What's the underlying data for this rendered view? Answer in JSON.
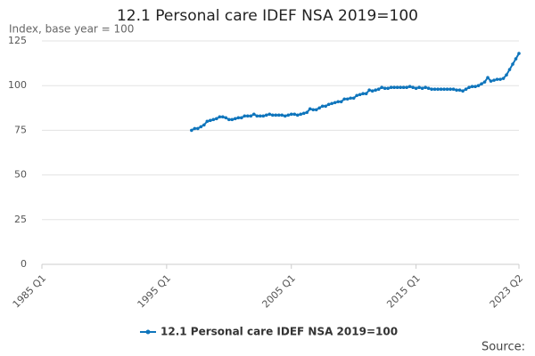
{
  "chart_data": {
    "type": "line",
    "title": "12.1 Personal care IDEF NSA 2019=100",
    "subtitle": "Index, base year = 100",
    "source": "Source:",
    "categories": [
      "1985 Q1",
      null,
      null,
      null,
      null,
      null,
      null,
      null,
      null,
      null,
      null,
      null,
      null,
      null,
      null,
      null,
      null,
      null,
      null,
      null,
      null,
      null,
      null,
      null,
      null,
      null,
      null,
      null,
      null,
      null,
      null,
      null,
      null,
      null,
      null,
      null,
      null,
      null,
      null,
      null,
      "1995 Q1",
      null,
      null,
      null,
      null,
      null,
      null,
      null,
      null,
      null,
      null,
      null,
      null,
      null,
      null,
      null,
      null,
      null,
      null,
      null,
      null,
      null,
      null,
      null,
      null,
      null,
      null,
      null,
      null,
      null,
      null,
      null,
      null,
      null,
      null,
      null,
      null,
      null,
      null,
      null,
      "2005 Q1",
      null,
      null,
      null,
      null,
      null,
      null,
      null,
      null,
      null,
      null,
      null,
      null,
      null,
      null,
      null,
      null,
      null,
      null,
      null,
      null,
      null,
      null,
      null,
      null,
      null,
      null,
      null,
      null,
      null,
      null,
      null,
      null,
      null,
      null,
      null,
      null,
      null,
      null,
      null,
      "2015 Q1",
      null,
      null,
      null,
      null,
      null,
      null,
      null,
      null,
      null,
      null,
      null,
      null,
      null,
      null,
      null,
      null,
      null,
      null,
      null,
      null,
      null,
      null,
      null,
      null,
      null,
      null,
      null,
      null,
      null,
      null,
      null,
      null,
      "2023 Q2"
    ],
    "series": [
      {
        "name": "12.1 Personal care IDEF NSA 2019=100",
        "color": "#0f75bc",
        "values": [
          null,
          null,
          null,
          null,
          null,
          null,
          null,
          null,
          null,
          null,
          null,
          null,
          null,
          null,
          null,
          null,
          null,
          null,
          null,
          null,
          null,
          null,
          null,
          null,
          null,
          null,
          null,
          null,
          null,
          null,
          null,
          null,
          null,
          null,
          null,
          null,
          null,
          null,
          null,
          null,
          null,
          null,
          null,
          null,
          null,
          null,
          null,
          null,
          75,
          76,
          76,
          77,
          78,
          80,
          80.5,
          81,
          81.5,
          82.5,
          82.5,
          82,
          81,
          81,
          81.5,
          82,
          82,
          83,
          83,
          83,
          84,
          83,
          83,
          83,
          83.5,
          84,
          83.5,
          83.5,
          83.5,
          83.5,
          83,
          83.5,
          84,
          84,
          83.5,
          84,
          84.5,
          85,
          87,
          86.5,
          86.5,
          87.5,
          88.5,
          88.5,
          89.5,
          90,
          90.5,
          91,
          91,
          92.5,
          92.5,
          93,
          93,
          94.5,
          95,
          95.5,
          95.5,
          97.5,
          97,
          97.5,
          98,
          99,
          98.5,
          98.5,
          99,
          99,
          99,
          99,
          99,
          99,
          99.5,
          99,
          98.5,
          99,
          98.5,
          99,
          98.5,
          98,
          98,
          98,
          98,
          98,
          98,
          98,
          98,
          97.5,
          97.5,
          97,
          98,
          99,
          99.5,
          99.5,
          100,
          101,
          102,
          104.5,
          102.5,
          103,
          103.5,
          103.5,
          104,
          106,
          109,
          112,
          115,
          118
        ]
      }
    ],
    "ylim": [
      0,
      125
    ],
    "yticks": [
      0,
      25,
      50,
      75,
      100,
      125
    ],
    "grid": true
  }
}
